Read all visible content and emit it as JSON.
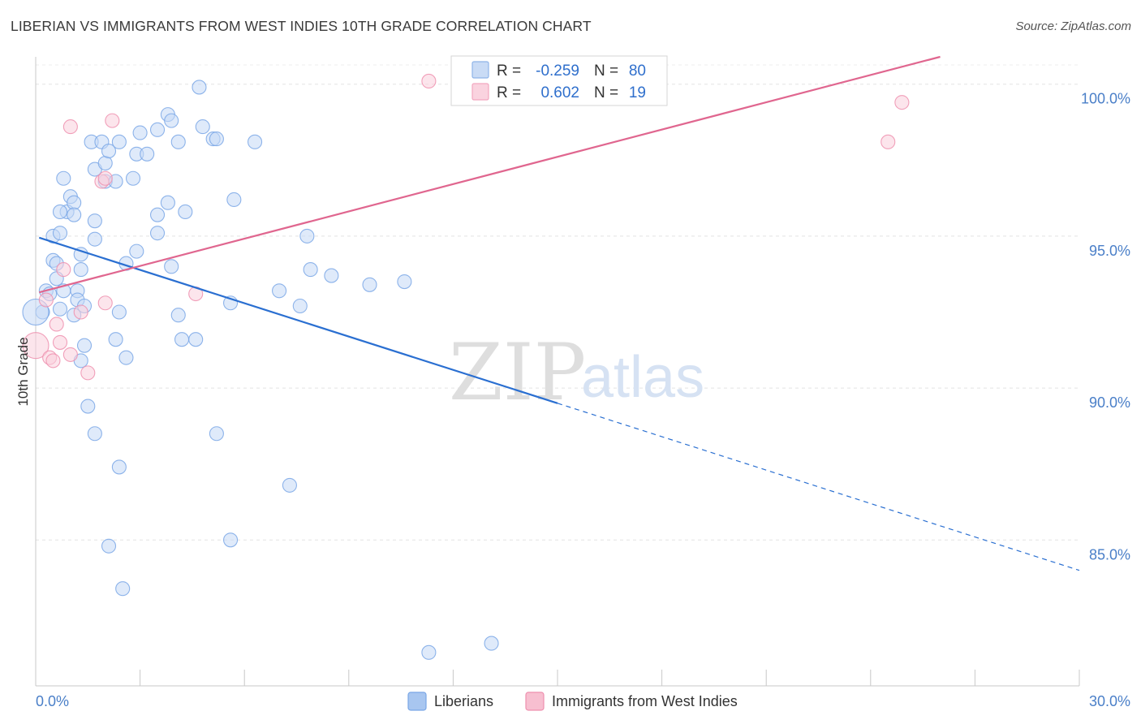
{
  "title": "LIBERIAN VS IMMIGRANTS FROM WEST INDIES 10TH GRADE CORRELATION CHART",
  "source": "Source: ZipAtlas.com",
  "watermark": {
    "zip": "ZIP",
    "atlas": "atlas"
  },
  "legend_box": {
    "rows": [
      {
        "r_label": "R =",
        "r_value": "-0.259",
        "n_label": "N =",
        "n_value": "80",
        "color": "#8fb4e8"
      },
      {
        "r_label": "R =",
        "r_value": "0.602",
        "n_label": "N =",
        "n_value": "19",
        "color": "#f2a6bf"
      }
    ]
  },
  "bottom_legend": [
    {
      "label": "Liberians",
      "color": "#a8c6f0"
    },
    {
      "label": "Immigrants from West Indies",
      "color": "#f7bfd0"
    }
  ],
  "chart_data": {
    "type": "scatter",
    "title": "LIBERIAN VS IMMIGRANTS FROM WEST INDIES 10TH GRADE CORRELATION CHART",
    "xlabel": "",
    "ylabel": "10th Grade",
    "xlim": [
      0,
      30
    ],
    "ylim": [
      80.2,
      100.9
    ],
    "x_tick_labels": [
      "0.0%",
      "30.0%"
    ],
    "y_ticks": [
      85,
      90,
      95,
      100
    ],
    "y_tick_labels": [
      "85.0%",
      "90.0%",
      "95.0%",
      "100.0%"
    ],
    "grid": true,
    "legend_position": "top-center",
    "series": [
      {
        "name": "Liberians",
        "color": "#7aa7e6",
        "fill": "#c5d9f5",
        "trend": {
          "x0": 0.1,
          "y0": 94.95,
          "x1": 15.0,
          "y1": 89.5,
          "dash_to_x": 30.0,
          "dash_to_y": 84.0
        },
        "points": [
          [
            0.2,
            92.5
          ],
          [
            0.3,
            93.2
          ],
          [
            0.4,
            93.1
          ],
          [
            0.5,
            94.2
          ],
          [
            0.6,
            94.1
          ],
          [
            0.6,
            93.6
          ],
          [
            0.5,
            95.0
          ],
          [
            0.7,
            92.6
          ],
          [
            0.8,
            93.2
          ],
          [
            0.7,
            95.1
          ],
          [
            0.9,
            95.8
          ],
          [
            0.7,
            95.8
          ],
          [
            0.8,
            96.9
          ],
          [
            1.0,
            96.3
          ],
          [
            1.1,
            96.1
          ],
          [
            1.1,
            95.7
          ],
          [
            1.3,
            94.4
          ],
          [
            1.3,
            93.9
          ],
          [
            1.2,
            93.2
          ],
          [
            1.2,
            92.9
          ],
          [
            1.4,
            92.7
          ],
          [
            1.1,
            92.4
          ],
          [
            1.4,
            91.4
          ],
          [
            1.3,
            90.9
          ],
          [
            1.5,
            89.4
          ],
          [
            1.6,
            98.1
          ],
          [
            1.9,
            98.1
          ],
          [
            1.7,
            97.2
          ],
          [
            2.0,
            97.4
          ],
          [
            2.0,
            96.8
          ],
          [
            2.3,
            96.8
          ],
          [
            1.7,
            95.5
          ],
          [
            1.7,
            94.9
          ],
          [
            2.1,
            97.8
          ],
          [
            2.4,
            98.1
          ],
          [
            2.9,
            97.7
          ],
          [
            2.8,
            96.9
          ],
          [
            3.0,
            98.4
          ],
          [
            3.2,
            97.7
          ],
          [
            2.6,
            94.1
          ],
          [
            2.9,
            94.5
          ],
          [
            2.4,
            92.5
          ],
          [
            2.3,
            91.6
          ],
          [
            2.6,
            91.0
          ],
          [
            3.5,
            98.5
          ],
          [
            3.8,
            99.0
          ],
          [
            3.9,
            98.8
          ],
          [
            4.1,
            98.1
          ],
          [
            3.8,
            96.1
          ],
          [
            3.5,
            95.7
          ],
          [
            3.5,
            95.1
          ],
          [
            4.3,
            95.8
          ],
          [
            3.9,
            94.0
          ],
          [
            4.1,
            92.4
          ],
          [
            4.2,
            91.6
          ],
          [
            4.6,
            91.6
          ],
          [
            4.7,
            99.9
          ],
          [
            4.8,
            98.6
          ],
          [
            5.1,
            98.2
          ],
          [
            5.2,
            98.2
          ],
          [
            5.7,
            96.2
          ],
          [
            6.3,
            98.1
          ],
          [
            5.6,
            92.8
          ],
          [
            7.0,
            93.2
          ],
          [
            7.6,
            92.7
          ],
          [
            7.8,
            95.0
          ],
          [
            7.9,
            93.9
          ],
          [
            8.5,
            93.7
          ],
          [
            9.6,
            93.4
          ],
          [
            10.6,
            93.5
          ],
          [
            1.7,
            88.5
          ],
          [
            2.4,
            87.4
          ],
          [
            5.2,
            88.5
          ],
          [
            7.3,
            86.8
          ],
          [
            2.1,
            84.8
          ],
          [
            5.6,
            85.0
          ],
          [
            2.5,
            83.4
          ],
          [
            11.3,
            81.3
          ],
          [
            13.1,
            81.6
          ],
          [
            0.0,
            92.5
          ]
        ]
      },
      {
        "name": "Immigrants from West Indies",
        "color": "#ee8fae",
        "fill": "#f9d0dc",
        "trend": {
          "x0": 0.1,
          "y0": 93.15,
          "x1": 26.0,
          "y1": 100.9
        },
        "points": [
          [
            0.0,
            91.4
          ],
          [
            0.3,
            92.9
          ],
          [
            0.4,
            91.0
          ],
          [
            0.5,
            90.9
          ],
          [
            0.6,
            92.1
          ],
          [
            0.7,
            91.5
          ],
          [
            0.8,
            93.9
          ],
          [
            1.0,
            91.1
          ],
          [
            1.3,
            92.5
          ],
          [
            1.5,
            90.5
          ],
          [
            1.0,
            98.6
          ],
          [
            2.2,
            98.8
          ],
          [
            1.9,
            96.8
          ],
          [
            2.0,
            96.9
          ],
          [
            2.0,
            92.8
          ],
          [
            4.6,
            93.1
          ],
          [
            11.3,
            100.1
          ],
          [
            24.9,
            99.4
          ],
          [
            24.5,
            98.1
          ]
        ]
      }
    ]
  }
}
